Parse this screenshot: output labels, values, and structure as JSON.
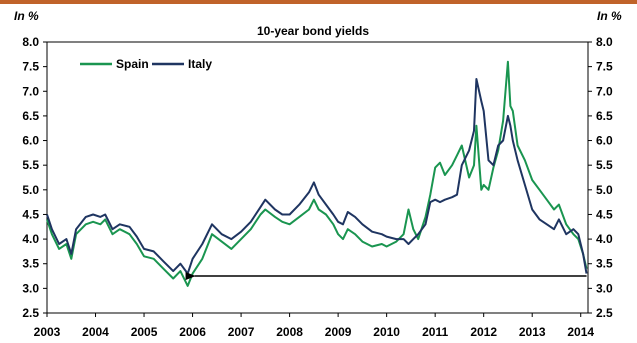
{
  "chart_data": {
    "type": "line",
    "title": "10-year bond yields",
    "unit_left": "In %",
    "unit_right": "In %",
    "ylim": [
      2.5,
      8.0
    ],
    "y_ticks": [
      "2.5",
      "3.0",
      "3.5",
      "4.0",
      "4.5",
      "5.0",
      "5.5",
      "6.0",
      "6.5",
      "7.0",
      "7.5",
      "8.0"
    ],
    "xlim": [
      2003.0,
      2014.15
    ],
    "x_ticks": [
      "2003",
      "2004",
      "2005",
      "2006",
      "2007",
      "2008",
      "2009",
      "2010",
      "2011",
      "2012",
      "2013",
      "2014"
    ],
    "legend": {
      "position": "top-left"
    },
    "grid": false,
    "series": [
      {
        "name": "Spain",
        "color": "#1a9550",
        "x": [
          2003.0,
          2003.1,
          2003.25,
          2003.4,
          2003.5,
          2003.6,
          2003.8,
          2003.95,
          2004.1,
          2004.2,
          2004.35,
          2004.5,
          2004.7,
          2004.85,
          2005.0,
          2005.2,
          2005.4,
          2005.6,
          2005.75,
          2005.9,
          2006.0,
          2006.2,
          2006.4,
          2006.6,
          2006.8,
          2007.0,
          2007.2,
          2007.4,
          2007.5,
          2007.7,
          2007.85,
          2008.0,
          2008.2,
          2008.4,
          2008.5,
          2008.6,
          2008.75,
          2008.9,
          2009.0,
          2009.1,
          2009.2,
          2009.35,
          2009.5,
          2009.7,
          2009.9,
          2010.0,
          2010.2,
          2010.35,
          2010.45,
          2010.55,
          2010.65,
          2010.8,
          2010.9,
          2011.0,
          2011.1,
          2011.2,
          2011.35,
          2011.45,
          2011.55,
          2011.7,
          2011.8,
          2011.85,
          2011.95,
          2012.0,
          2012.1,
          2012.2,
          2012.3,
          2012.4,
          2012.5,
          2012.55,
          2012.6,
          2012.7,
          2012.85,
          2013.0,
          2013.15,
          2013.3,
          2013.45,
          2013.55,
          2013.7,
          2013.85,
          2013.95,
          2014.05,
          2014.12
        ],
        "values": [
          4.4,
          4.1,
          3.8,
          3.9,
          3.6,
          4.1,
          4.3,
          4.35,
          4.3,
          4.4,
          4.1,
          4.2,
          4.1,
          3.9,
          3.65,
          3.6,
          3.4,
          3.2,
          3.35,
          3.05,
          3.3,
          3.6,
          4.1,
          3.95,
          3.8,
          4.0,
          4.2,
          4.5,
          4.6,
          4.45,
          4.35,
          4.3,
          4.45,
          4.6,
          4.8,
          4.6,
          4.5,
          4.3,
          4.1,
          4.0,
          4.2,
          4.1,
          3.95,
          3.85,
          3.9,
          3.85,
          3.95,
          4.1,
          4.6,
          4.2,
          4.0,
          4.45,
          4.9,
          5.45,
          5.55,
          5.3,
          5.5,
          5.7,
          5.9,
          5.25,
          5.5,
          6.3,
          5.0,
          5.1,
          5.0,
          5.45,
          5.8,
          6.4,
          7.6,
          6.7,
          6.6,
          5.9,
          5.6,
          5.2,
          5.0,
          4.8,
          4.6,
          4.7,
          4.3,
          4.1,
          4.0,
          3.7,
          3.4
        ]
      },
      {
        "name": "Italy",
        "color": "#1f3561",
        "x": [
          2003.0,
          2003.1,
          2003.25,
          2003.4,
          2003.5,
          2003.6,
          2003.8,
          2003.95,
          2004.1,
          2004.2,
          2004.35,
          2004.5,
          2004.7,
          2004.85,
          2005.0,
          2005.2,
          2005.4,
          2005.6,
          2005.75,
          2005.9,
          2006.0,
          2006.2,
          2006.4,
          2006.6,
          2006.8,
          2007.0,
          2007.2,
          2007.4,
          2007.5,
          2007.7,
          2007.85,
          2008.0,
          2008.2,
          2008.4,
          2008.5,
          2008.6,
          2008.75,
          2008.9,
          2009.0,
          2009.1,
          2009.2,
          2009.35,
          2009.5,
          2009.7,
          2009.9,
          2010.0,
          2010.2,
          2010.35,
          2010.45,
          2010.55,
          2010.65,
          2010.8,
          2010.9,
          2011.0,
          2011.1,
          2011.2,
          2011.35,
          2011.45,
          2011.55,
          2011.7,
          2011.8,
          2011.85,
          2011.95,
          2012.0,
          2012.1,
          2012.2,
          2012.3,
          2012.4,
          2012.5,
          2012.55,
          2012.6,
          2012.7,
          2012.85,
          2013.0,
          2013.15,
          2013.3,
          2013.45,
          2013.55,
          2013.7,
          2013.85,
          2013.95,
          2014.05,
          2014.12
        ],
        "values": [
          4.5,
          4.2,
          3.9,
          4.0,
          3.7,
          4.2,
          4.45,
          4.5,
          4.45,
          4.5,
          4.2,
          4.3,
          4.25,
          4.05,
          3.8,
          3.75,
          3.55,
          3.35,
          3.5,
          3.3,
          3.6,
          3.9,
          4.3,
          4.1,
          4.0,
          4.15,
          4.35,
          4.65,
          4.8,
          4.6,
          4.5,
          4.5,
          4.7,
          4.95,
          5.15,
          4.9,
          4.7,
          4.5,
          4.35,
          4.3,
          4.55,
          4.45,
          4.3,
          4.15,
          4.1,
          4.05,
          4.0,
          4.0,
          3.9,
          4.0,
          4.1,
          4.3,
          4.75,
          4.8,
          4.75,
          4.8,
          4.85,
          4.9,
          5.5,
          5.8,
          6.2,
          7.25,
          6.8,
          6.6,
          5.6,
          5.5,
          5.9,
          6.0,
          6.5,
          6.3,
          6.0,
          5.6,
          5.1,
          4.6,
          4.4,
          4.3,
          4.2,
          4.4,
          4.1,
          4.2,
          4.1,
          3.7,
          3.3
        ]
      }
    ],
    "annotation": {
      "type": "arrow",
      "y": 3.25,
      "x_from": 2014.12,
      "x_to": 2006.0
    }
  }
}
